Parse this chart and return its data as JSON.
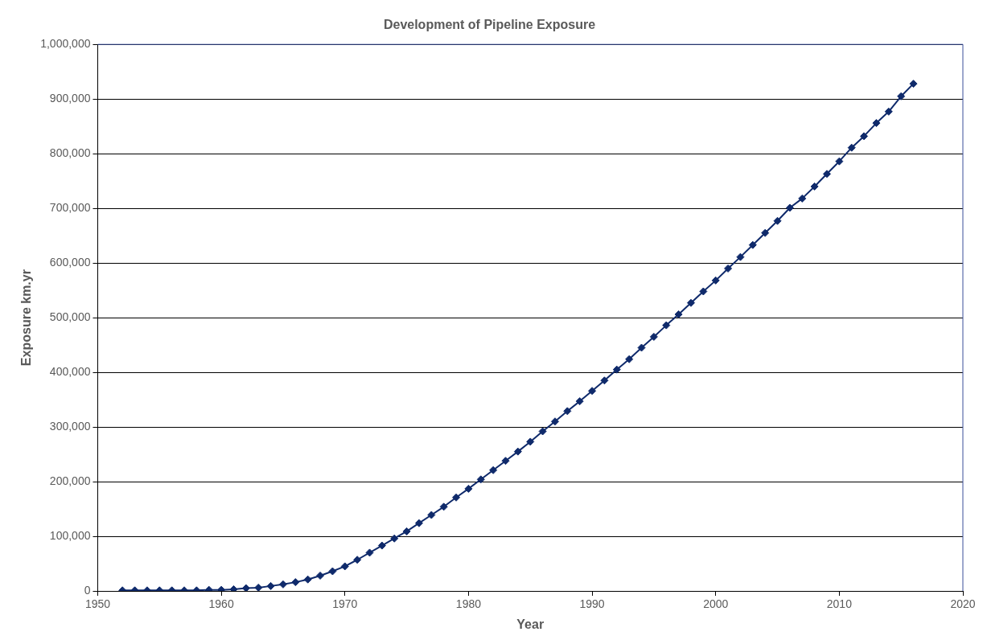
{
  "chart_data": {
    "type": "line",
    "title": "Development of Pipeline Exposure",
    "xlabel": "Year",
    "ylabel": "Exposure km.yr",
    "x": [
      1952,
      1953,
      1954,
      1955,
      1956,
      1957,
      1958,
      1959,
      1960,
      1961,
      1962,
      1963,
      1964,
      1965,
      1966,
      1967,
      1968,
      1969,
      1970,
      1971,
      1972,
      1973,
      1974,
      1975,
      1976,
      1977,
      1978,
      1979,
      1980,
      1981,
      1982,
      1983,
      1984,
      1985,
      1986,
      1987,
      1988,
      1989,
      1990,
      1991,
      1992,
      1993,
      1994,
      1995,
      1996,
      1997,
      1998,
      1999,
      2000,
      2001,
      2002,
      2003,
      2004,
      2005,
      2006,
      2007,
      2008,
      2009,
      2010,
      2011,
      2012,
      2013,
      2014,
      2015,
      2016
    ],
    "series": [
      {
        "color": "#0f2a6b",
        "values": [
          1000,
          1000,
          1000,
          1000,
          1000,
          1000,
          1000,
          2000,
          2000,
          3000,
          5000,
          6000,
          9000,
          12000,
          16000,
          21000,
          28000,
          36000,
          45000,
          57000,
          70000,
          83000,
          96000,
          109000,
          124000,
          139000,
          154000,
          171000,
          187000,
          204000,
          221000,
          238000,
          255000,
          273000,
          292000,
          310000,
          329000,
          347000,
          366000,
          385000,
          405000,
          424000,
          445000,
          465000,
          486000,
          506000,
          527000,
          548000,
          568000,
          590000,
          611000,
          633000,
          655000,
          677000,
          701000,
          718000,
          740000,
          763000,
          786000,
          811000,
          832000,
          856000,
          877000,
          905000,
          928000
        ]
      }
    ],
    "xlim": [
      1950,
      2020
    ],
    "xticks": [
      1950,
      1960,
      1970,
      1980,
      1990,
      2000,
      2010,
      2020
    ],
    "ylim": [
      0,
      1000000
    ],
    "yticks": [
      0,
      {
        "value": 100000,
        "label": "100,000"
      },
      {
        "value": 200000,
        "label": "200,000"
      },
      {
        "value": 300000,
        "label": "300,000"
      },
      {
        "value": 400000,
        "label": "400,000"
      },
      {
        "value": 500000,
        "label": "500,000"
      },
      {
        "value": 600000,
        "label": "600,000"
      },
      {
        "value": 700000,
        "label": "700,000"
      },
      {
        "value": 800000,
        "label": "800,000"
      },
      {
        "value": 900000,
        "label": "900,000"
      },
      {
        "value": 1000000,
        "label": "1,000,000"
      }
    ],
    "grid": "y",
    "legend": false,
    "marker": "diamond",
    "line_style": "solid"
  }
}
